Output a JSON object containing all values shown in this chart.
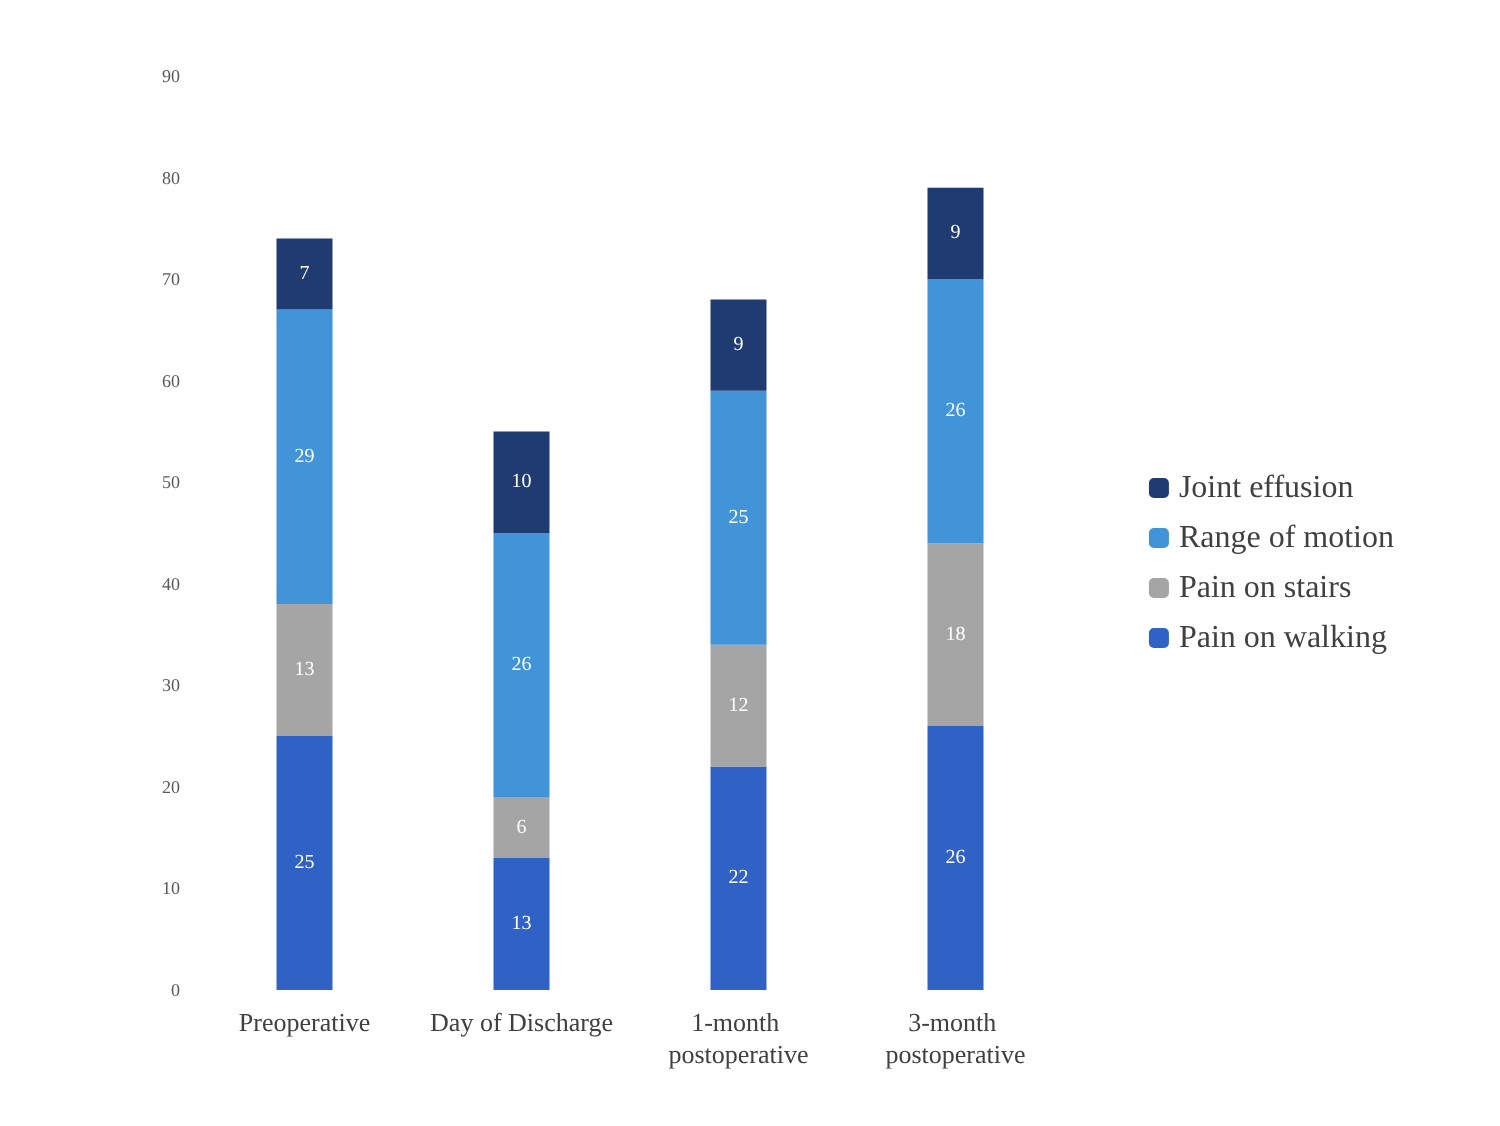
{
  "chart_data": {
    "type": "bar",
    "stacked": true,
    "categories": [
      "Preoperative",
      "Day of Discharge",
      "1-month postoperative",
      "3-month postoperative"
    ],
    "series": [
      {
        "name": "Pain on walking",
        "color": "#2f62c4",
        "values": [
          25,
          13,
          22,
          26
        ]
      },
      {
        "name": "Pain on stairs",
        "color": "#a5a5a5",
        "values": [
          13,
          6,
          12,
          18
        ]
      },
      {
        "name": "Range of motion",
        "color": "#4194d8",
        "values": [
          29,
          26,
          25,
          26
        ]
      },
      {
        "name": "Joint effusion",
        "color": "#1f3b72",
        "values": [
          7,
          10,
          9,
          9
        ]
      }
    ],
    "ylim": [
      0,
      90
    ],
    "yticks": [
      0,
      10,
      20,
      30,
      40,
      50,
      60,
      70,
      80,
      90
    ],
    "grid": false,
    "legend": "right",
    "data_labels": true
  }
}
